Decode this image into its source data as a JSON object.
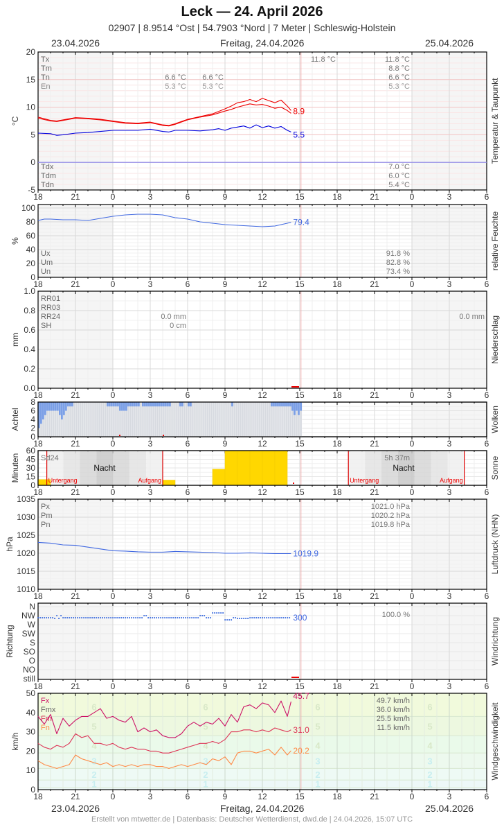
{
  "header": {
    "title": "Leck  —  24. April 2026",
    "subtitle": "02907  |  8.9514 °Ost  |  54.7903 °Nord  |  7 Meter  |  Schleswig-Holstein",
    "date_left": "23.04.2026",
    "date_center": "Freitag, 24.04.2026",
    "date_right": "25.04.2026"
  },
  "footer": {
    "text": "Erstellt von mtwetter.de | Datenbasis: Deutscher Wetterdienst, dwd.de | 24.04.2026, 15:07 UTC",
    "date_left": "23.04.2026",
    "date_center": "Freitag, 24.04.2026",
    "date_right": "25.04.2026"
  },
  "x_axis": {
    "ticks": [
      "18",
      "21",
      "0",
      "3",
      "6",
      "9",
      "12",
      "15",
      "18",
      "21",
      "0",
      "3",
      "6"
    ],
    "now_hour_offset": 21.1
  },
  "chart_data": [
    {
      "id": "temperature",
      "type": "line",
      "title": "Temperatur & Taupunkt",
      "ylabel": "°C",
      "ylim": [
        -5,
        20
      ],
      "yticks": [
        "20",
        "15",
        "10",
        "5",
        "0",
        "-5"
      ],
      "legend_top": [
        "Tx",
        "Tm",
        "Tn",
        "En"
      ],
      "legend_bottom": [
        "Tdx",
        "Tdm",
        "Tdn"
      ],
      "annotations_night": [
        "6.6 °C",
        "5.3 °C",
        "6.6 °C",
        "5.3 °C"
      ],
      "annotation_day_max": "11.8 °C",
      "day_summary_top": [
        "11.8 °C",
        "8.8 °C",
        "6.6 °C",
        "5.3 °C"
      ],
      "day_summary_bottom": [
        "7.0 °C",
        "6.0 °C",
        "5.4 °C"
      ],
      "series": [
        {
          "name": "Temperatur (max)",
          "color": "#ee0000",
          "last_label": "8.9",
          "x": [
            0,
            1,
            1.5,
            2,
            3,
            4,
            5,
            6,
            7,
            8,
            9,
            10,
            10.5,
            11,
            12,
            13,
            14,
            15,
            15.5,
            16,
            16.5,
            17,
            17.5,
            18,
            18.5,
            19,
            19.5,
            20,
            20.3
          ],
          "y": [
            8.2,
            7.6,
            7.5,
            7.7,
            8.1,
            8.0,
            7.8,
            7.5,
            7.2,
            7.1,
            7.3,
            6.8,
            6.7,
            7.0,
            7.8,
            8.3,
            8.8,
            9.7,
            10.2,
            10.8,
            11.0,
            11.4,
            11.0,
            11.6,
            11.2,
            10.8,
            11.3,
            10.2,
            9.4
          ]
        },
        {
          "name": "Temperatur",
          "color": "#ee0000",
          "x": [
            0,
            1,
            1.5,
            2,
            3,
            4,
            5,
            6,
            7,
            8,
            9,
            10,
            10.5,
            11,
            12,
            13,
            14,
            15,
            15.5,
            16,
            16.5,
            17,
            17.5,
            18,
            18.5,
            19,
            19.5,
            20,
            20.3
          ],
          "y": [
            8.0,
            7.5,
            7.4,
            7.6,
            8.0,
            7.9,
            7.7,
            7.4,
            7.1,
            7.0,
            7.2,
            6.7,
            6.6,
            6.9,
            7.7,
            8.2,
            8.6,
            9.3,
            9.6,
            10.0,
            10.3,
            10.6,
            10.4,
            10.5,
            10.2,
            9.8,
            10.0,
            9.4,
            8.9
          ]
        },
        {
          "name": "Taupunkt",
          "color": "#0000dd",
          "last_label": "5.5",
          "x": [
            0,
            1,
            1.5,
            2,
            3,
            4,
            5,
            6,
            7,
            8,
            9,
            10,
            10.5,
            11,
            12,
            13,
            14,
            14.5,
            15,
            15.5,
            16,
            16.5,
            17,
            17.5,
            18,
            18.5,
            19,
            19.5,
            20,
            20.3
          ],
          "y": [
            5.3,
            5.2,
            4.9,
            5.0,
            5.3,
            5.4,
            5.6,
            5.8,
            5.8,
            5.8,
            6.0,
            5.6,
            5.5,
            5.8,
            5.8,
            5.7,
            5.9,
            6.1,
            5.8,
            6.2,
            6.4,
            6.6,
            6.2,
            6.8,
            6.3,
            6.6,
            6.2,
            6.5,
            5.8,
            5.5
          ]
        }
      ]
    },
    {
      "id": "humidity",
      "type": "line",
      "title": "relative Feuchte",
      "ylabel": "%",
      "ylim": [
        0,
        100
      ],
      "yticks": [
        "100",
        "80",
        "60",
        "40",
        "20",
        "0"
      ],
      "legend": [
        "Ux",
        "Um",
        "Un"
      ],
      "day_summary": [
        "91.8 %",
        "82.8 %",
        "73.4 %"
      ],
      "series": [
        {
          "name": "Relative Feuchte",
          "color": "#4169e1",
          "last_label": "79.4",
          "x": [
            0,
            0.5,
            1,
            2,
            3,
            4,
            5,
            6,
            7,
            8,
            9,
            10,
            11,
            12,
            13,
            14,
            15,
            16,
            17,
            18,
            19,
            20,
            20.3
          ],
          "y": [
            82,
            84,
            84,
            83,
            83,
            82,
            85,
            88,
            90,
            91,
            91,
            90,
            86,
            84,
            80,
            78,
            76,
            75,
            74,
            73,
            74,
            78,
            79.4
          ]
        }
      ]
    },
    {
      "id": "precipitation",
      "type": "bar",
      "title": "Niederschlag",
      "ylabel": "mm",
      "ylim": [
        0,
        1.0
      ],
      "yticks": [
        "1.0",
        "0.8",
        "0.6",
        "0.4",
        "0.2",
        "0.0"
      ],
      "legend": [
        "RR01",
        "RR03",
        "RR24",
        "SH"
      ],
      "night_values": [
        "0.0 mm",
        "0 cm"
      ],
      "day_summary": [
        "0.0 mm"
      ],
      "values_mm": 0.0
    },
    {
      "id": "clouds",
      "type": "bar",
      "title": "Wolken",
      "ylabel": "Achtel",
      "ylim": [
        0,
        8
      ],
      "yticks": [
        "8",
        "6",
        "4",
        "2",
        "0"
      ],
      "bar_width_hours": 0.1667,
      "values": [
        2,
        3,
        4,
        5,
        6,
        6,
        6,
        6,
        6,
        6,
        5,
        4,
        5,
        6,
        7,
        7,
        7,
        8,
        8,
        8,
        8,
        8,
        8,
        8,
        8,
        8,
        8,
        8,
        8,
        8,
        8,
        8,
        8,
        7,
        7,
        7,
        7,
        7,
        7,
        6,
        6,
        6,
        6,
        7,
        7,
        7,
        7,
        7,
        7,
        8,
        7,
        7,
        7,
        7,
        7,
        7,
        7,
        7,
        7,
        7,
        7,
        7,
        7,
        7,
        8,
        8,
        8,
        8,
        7,
        7,
        8,
        8,
        7,
        7,
        8,
        8,
        8,
        8,
        8,
        8,
        8,
        8,
        8,
        8,
        8,
        8,
        8,
        8,
        8,
        8,
        8,
        8,
        8,
        7,
        8,
        8,
        8,
        8,
        8,
        8,
        8,
        8,
        8,
        8,
        8,
        8,
        8,
        8,
        8,
        8,
        8,
        8,
        7,
        7,
        7,
        7,
        7,
        7,
        7,
        7,
        7,
        7,
        6,
        5,
        6,
        5,
        6,
        5,
        4,
        4,
        3,
        2,
        2,
        3,
        2,
        1,
        1,
        0,
        1,
        1,
        2,
        3,
        4,
        3,
        3,
        4,
        4,
        5,
        6,
        7,
        7,
        7,
        8,
        8,
        7,
        7
      ]
    },
    {
      "id": "sunshine",
      "type": "bar",
      "title": "Sonne",
      "ylabel": "Minuten",
      "ylim": [
        0,
        60
      ],
      "yticks": [
        "60",
        "45",
        "30",
        "15",
        "0"
      ],
      "legend": "Sd24",
      "day_summary": "5h 37m",
      "night_label": "Nacht",
      "sunset_label": "Untergang",
      "sunrise_label": "Aufgang",
      "sunset_hours": [
        0.7,
        24.9
      ],
      "sunrise_hours": [
        10.0,
        34.2
      ],
      "hourly": [
        {
          "h": 0,
          "v": 10
        },
        {
          "h": 10,
          "v": 9
        },
        {
          "h": 14,
          "v": 28
        },
        {
          "h": 15,
          "v": 60
        },
        {
          "h": 16,
          "v": 60
        },
        {
          "h": 17,
          "v": 60
        },
        {
          "h": 18,
          "v": 60
        },
        {
          "h": 19,
          "v": 60
        }
      ]
    },
    {
      "id": "pressure",
      "type": "line",
      "title": "Luftdruck (NHN)",
      "ylabel": "hPa",
      "ylim": [
        1010,
        1035
      ],
      "yticks": [
        "1035",
        "1030",
        "1025",
        "1020",
        "1015",
        "1010"
      ],
      "legend": [
        "Px",
        "Pm",
        "Pn"
      ],
      "day_summary": [
        "1021.0 hPa",
        "1020.2 hPa",
        "1019.8 hPa"
      ],
      "series": [
        {
          "name": "Luftdruck",
          "color": "#4169e1",
          "last_label": "1019.9",
          "x": [
            0,
            1,
            2,
            3,
            4,
            5,
            6,
            7,
            8,
            9,
            10,
            11,
            12,
            13,
            14,
            15,
            16,
            17,
            18,
            19,
            20,
            20.3
          ],
          "y": [
            1023,
            1022.8,
            1022.3,
            1022.2,
            1021.7,
            1021.2,
            1020.7,
            1020.6,
            1020.4,
            1020.3,
            1020.3,
            1020.5,
            1020.4,
            1020.3,
            1020.2,
            1020.0,
            1020.0,
            1020.1,
            1020.0,
            1019.9,
            1019.9,
            1019.9
          ]
        }
      ]
    },
    {
      "id": "wind_direction",
      "type": "scatter",
      "title": "Windrichtung",
      "ylabel": "Richtung",
      "categories": [
        "N",
        "NW",
        "W",
        "SW",
        "S",
        "SO",
        "O",
        "NO",
        "still"
      ],
      "day_summary": "100.0 %",
      "last_label": "300",
      "note": "Nearly all points at NW (~300°), slight excursions between N and W"
    },
    {
      "id": "wind_speed",
      "type": "line",
      "title": "Windgeschwindigkeit",
      "ylabel": "km/h",
      "ylim": [
        0,
        50
      ],
      "yticks": [
        "50",
        "40",
        "30",
        "20",
        "10",
        "0"
      ],
      "legend": [
        "Fx",
        "Fmx",
        "Fm",
        "Fn"
      ],
      "legend_colors": [
        "#cc1166",
        "#666666",
        "#dd3355",
        "#ff8844"
      ],
      "day_summary": [
        "49.7 km/h",
        "36.0 km/h",
        "25.5 km/h",
        "11.5 km/h"
      ],
      "beaufort_labels": [
        "6",
        "5",
        "4",
        "3",
        "2",
        "1"
      ],
      "series": [
        {
          "name": "Fx",
          "color": "#cc1166",
          "last_label": "45.7",
          "x": [
            0,
            0.5,
            1,
            1.5,
            2,
            2.5,
            3,
            3.5,
            4,
            4.5,
            5,
            5.5,
            6,
            6.5,
            7,
            7.5,
            8,
            8.5,
            9,
            9.5,
            10,
            10.5,
            11,
            11.5,
            12,
            12.5,
            13,
            13.5,
            14,
            14.5,
            15,
            15.5,
            16,
            16.5,
            17,
            17.5,
            18,
            18.5,
            19,
            19.5,
            20,
            20.3
          ],
          "y": [
            38,
            34,
            39,
            29,
            37,
            33,
            36,
            38,
            38,
            40,
            42,
            37,
            38,
            36,
            35,
            38,
            30,
            32,
            30,
            31,
            28,
            27,
            27,
            29,
            33,
            35,
            33,
            35,
            34,
            37,
            33,
            39,
            35,
            43,
            44,
            42,
            45,
            44,
            40,
            46,
            38,
            45.7
          ]
        },
        {
          "name": "Fm",
          "color": "#dd3355",
          "last_label": "31.0",
          "x": [
            0,
            0.5,
            1,
            1.5,
            2,
            2.5,
            3,
            3.5,
            4,
            4.5,
            5,
            5.5,
            6,
            6.5,
            7,
            7.5,
            8,
            8.5,
            9,
            9.5,
            10,
            10.5,
            11,
            11.5,
            12,
            12.5,
            13,
            13.5,
            14,
            14.5,
            15,
            15.5,
            16,
            16.5,
            17,
            17.5,
            18,
            18.5,
            19,
            19.5,
            20,
            20.3
          ],
          "y": [
            24,
            22,
            21,
            23,
            22,
            24,
            29,
            27,
            28,
            24,
            24,
            23,
            24,
            22,
            21,
            22,
            21,
            21,
            20,
            20,
            19,
            19,
            20,
            21,
            22,
            23,
            24,
            24,
            25,
            24,
            26,
            30,
            30,
            31,
            31,
            30,
            31,
            30,
            32,
            31,
            30,
            31.0
          ]
        },
        {
          "name": "Fn",
          "color": "#ff8844",
          "last_label": "20.2",
          "x": [
            0,
            0.5,
            1,
            1.5,
            2,
            2.5,
            3,
            3.5,
            4,
            4.5,
            5,
            5.5,
            6,
            6.5,
            7,
            7.5,
            8,
            8.5,
            9,
            9.5,
            10,
            10.5,
            11,
            11.5,
            12,
            12.5,
            13,
            13.5,
            14,
            14.5,
            15,
            15.5,
            16,
            16.5,
            17,
            17.5,
            18,
            18.5,
            19,
            19.5,
            20,
            20.3
          ],
          "y": [
            15,
            13,
            12,
            11,
            12,
            13,
            18,
            16,
            15,
            14,
            13,
            14,
            12,
            13,
            12,
            13,
            12,
            13,
            13,
            12,
            12,
            11,
            12,
            13,
            12,
            13,
            14,
            13,
            16,
            15,
            17,
            13,
            19,
            20,
            20,
            19,
            20,
            21,
            18,
            22,
            18,
            20.2
          ]
        }
      ]
    }
  ]
}
